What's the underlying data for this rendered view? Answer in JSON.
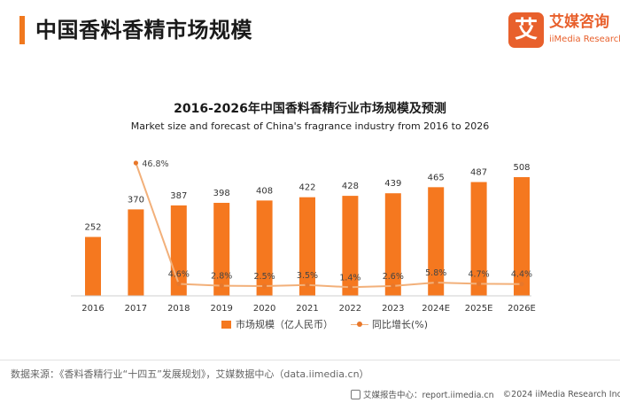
{
  "page": {
    "title": "中国香料香精市场规模"
  },
  "logo": {
    "mark": "艾",
    "cn": "艾媒咨询",
    "en": "iiMedia Research"
  },
  "chart_data": {
    "type": "bar",
    "title": "2016-2026年中国香料香精行业市场规模及预测",
    "subtitle": "Market size and forecast of China's fragrance industry from 2016 to 2026",
    "categories": [
      "2016",
      "2017",
      "2018",
      "2019",
      "2020",
      "2021",
      "2022",
      "2023",
      "2024E",
      "2025E",
      "2026E"
    ],
    "series": [
      {
        "name": "市场规模（亿人民币）",
        "type": "bar",
        "values": [
          252,
          370,
          387,
          398,
          408,
          422,
          428,
          439,
          465,
          487,
          508
        ],
        "labels": [
          "252",
          "370",
          "387",
          "398",
          "408",
          "422",
          "428",
          "439",
          "465",
          "487",
          "508"
        ],
        "color": "#F5781F"
      },
      {
        "name": "同比增长(%)",
        "type": "line",
        "values": [
          null,
          46.8,
          4.6,
          2.8,
          2.5,
          3.5,
          1.4,
          2.6,
          5.8,
          4.7,
          4.4
        ],
        "labels": [
          "",
          "46.8%",
          "4.6%",
          "2.8%",
          "2.5%",
          "3.5%",
          "1.4%",
          "2.6%",
          "5.8%",
          "4.7%",
          "4.4%"
        ],
        "color": "#F2B07A",
        "marker_color": "#E8772A"
      }
    ],
    "ylim_bar": [
      0,
      600
    ],
    "ylim_line": [
      0,
      55
    ],
    "legend_position": "bottom"
  },
  "source": "数据来源：《香料香精行业“十四五”发展规划》，艾媒数据中心（data.iimedia.cn）",
  "footer": {
    "report_center": "艾媒报告中心：report.iimedia.cn",
    "copyright": "©2024  iiMedia Research  Inc"
  },
  "colors": {
    "accent": "#F0781E",
    "bar": "#F5781F",
    "line": "#F2B07A",
    "brand": "#E8602C"
  }
}
